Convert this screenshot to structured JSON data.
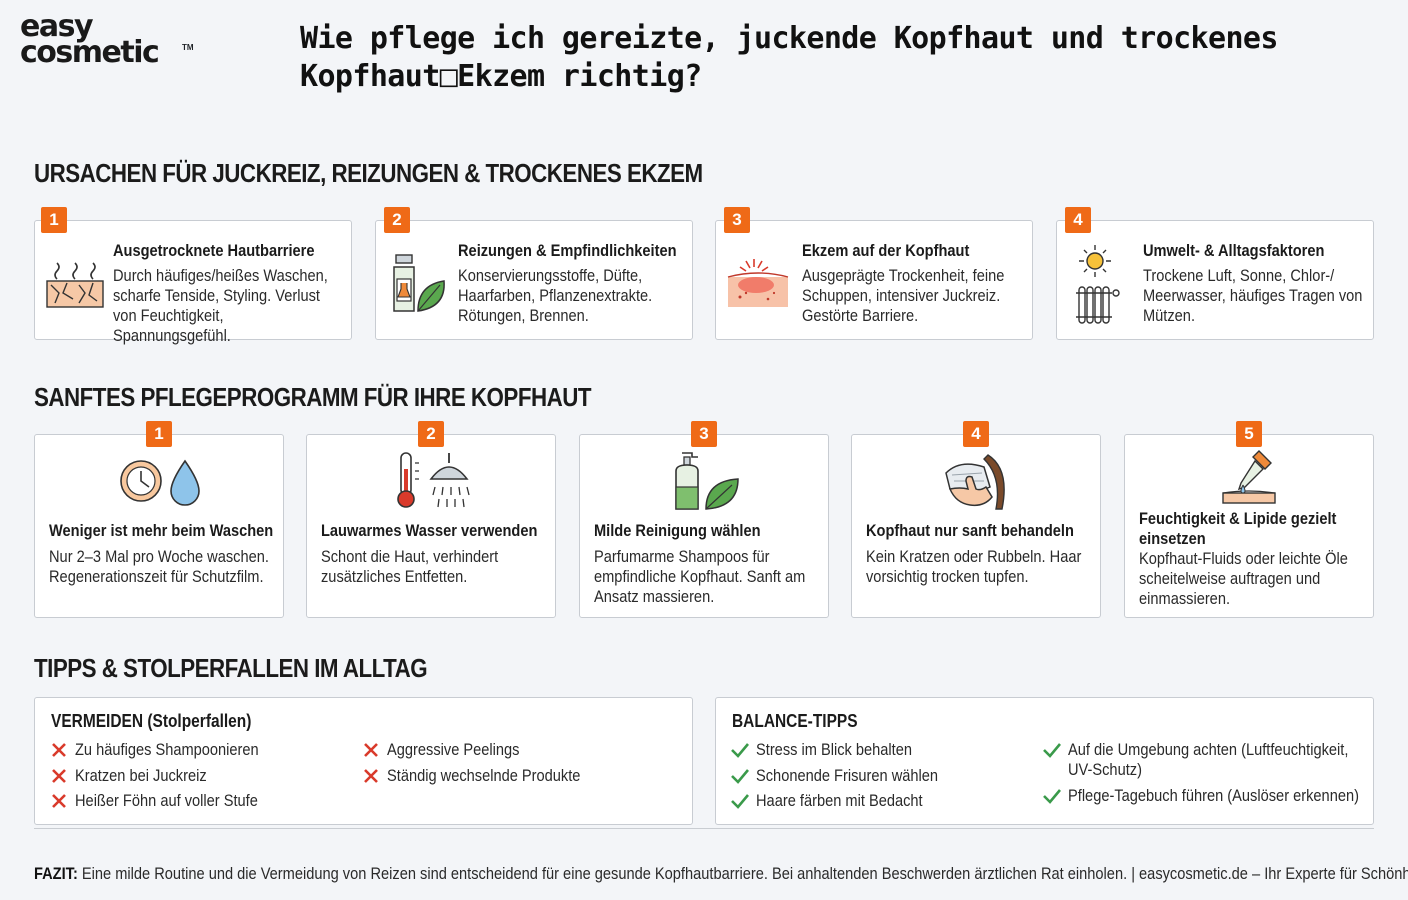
{
  "logo": {
    "line1": "easy",
    "line2": "cosmetic",
    "tm": "TM"
  },
  "title": "Wie pflege ich gereizte, juckende Kopfhaut und trockenes Kopfhaut□Ekzem richtig?",
  "section1": {
    "heading": "URSACHEN FÜR JUCKREIZ, REIZUNGEN & TROCKENES EKZEM",
    "cards": [
      {
        "num": "1",
        "title": "Ausgetrocknete Hautbarriere",
        "text": "Durch häufiges/heißes Waschen, scharfe Tenside, Styling. Verlust von Feuchtigkeit, Spannungsgefühl.",
        "icon": "dry-skin-icon"
      },
      {
        "num": "2",
        "title": "Reizungen & Empfindlichkeiten",
        "text": "Konservierungsstoffe, Düfte, Haarfarben, Pflanzenextrakte. Rötungen, Brennen.",
        "icon": "bottle-leaf-icon"
      },
      {
        "num": "3",
        "title": "Ekzem auf der Kopfhaut",
        "text": "Ausgeprägte Trockenheit, feine Schuppen, intensiver Juckreiz. Gestörte Barriere.",
        "icon": "inflamed-skin-icon"
      },
      {
        "num": "4",
        "title": "Umwelt- & Alltagsfaktoren",
        "text": "Trockene Luft, Sonne, Chlor-/ Meerwasser, häufiges Tragen von Mützen.",
        "icon": "sun-heater-icon"
      }
    ]
  },
  "section2": {
    "heading": "SANFTES PFLEGEPROGRAMM FÜR IHRE KOPFHAUT",
    "cards": [
      {
        "num": "1",
        "title": "Weniger ist mehr beim Waschen",
        "text": "Nur 2–3 Mal pro Woche waschen. Regenerationszeit für Schutzfilm.",
        "icon": "clock-drop-icon"
      },
      {
        "num": "2",
        "title": "Lauwarmes Wasser verwenden",
        "text": "Schont die Haut, verhindert zusätzliches Entfetten.",
        "icon": "thermometer-shower-icon"
      },
      {
        "num": "3",
        "title": "Milde Reinigung wählen",
        "text": "Parfumarme Shampoos für empfindliche Kopfhaut. Sanft am Ansatz massieren.",
        "icon": "shampoo-leaf-icon"
      },
      {
        "num": "4",
        "title": "Kopfhaut nur sanft behandeln",
        "text": "Kein Kratzen oder Rubbeln. Haar vorsichtig trocken tupfen.",
        "icon": "towel-hand-icon"
      },
      {
        "num": "5",
        "title": "Feuchtigkeit & Lipide gezielt einsetzen",
        "text": "Kopfhaut-Fluids oder leichte Öle scheitelweise auftragen und einmassieren.",
        "icon": "dropper-icon"
      }
    ]
  },
  "section3": {
    "heading": "TIPPS & STOLPERFALLEN IM ALLTAG",
    "avoid": {
      "heading": "VERMEIDEN (Stolperfallen)",
      "col1": [
        "Zu häufiges Shampoonieren",
        "Kratzen bei Juckreiz",
        "Heißer Föhn auf voller Stufe"
      ],
      "col2": [
        "Aggressive Peelings",
        "Ständig wechselnde Produkte"
      ]
    },
    "balance": {
      "heading": "BALANCE-TIPPS",
      "col1": [
        "Stress im Blick behalten",
        "Schonende Frisuren wählen",
        "Haare färben mit Bedacht"
      ],
      "col2a": "Auf die Umgebung achten (Luftfeuchtigkeit, UV-Schutz)",
      "col2b": "Pflege-Tagebuch führen (Auslöser erkennen)"
    }
  },
  "fazit": {
    "label": "FAZIT:",
    "text": " Eine milde Routine und die Vermeidung von Reizen sind entscheidend für eine gesunde Kopfhautbarriere. Bei anhaltenden Beschwerden ärztlichen Rat einholen. | easycosmetic.de – Ihr Experte für Schönheit"
  },
  "colors": {
    "accent": "#ef6a17",
    "check": "#3a9a4a",
    "cross": "#d93a2b",
    "border": "#c8ccd2",
    "background": "#f3f5f8"
  }
}
